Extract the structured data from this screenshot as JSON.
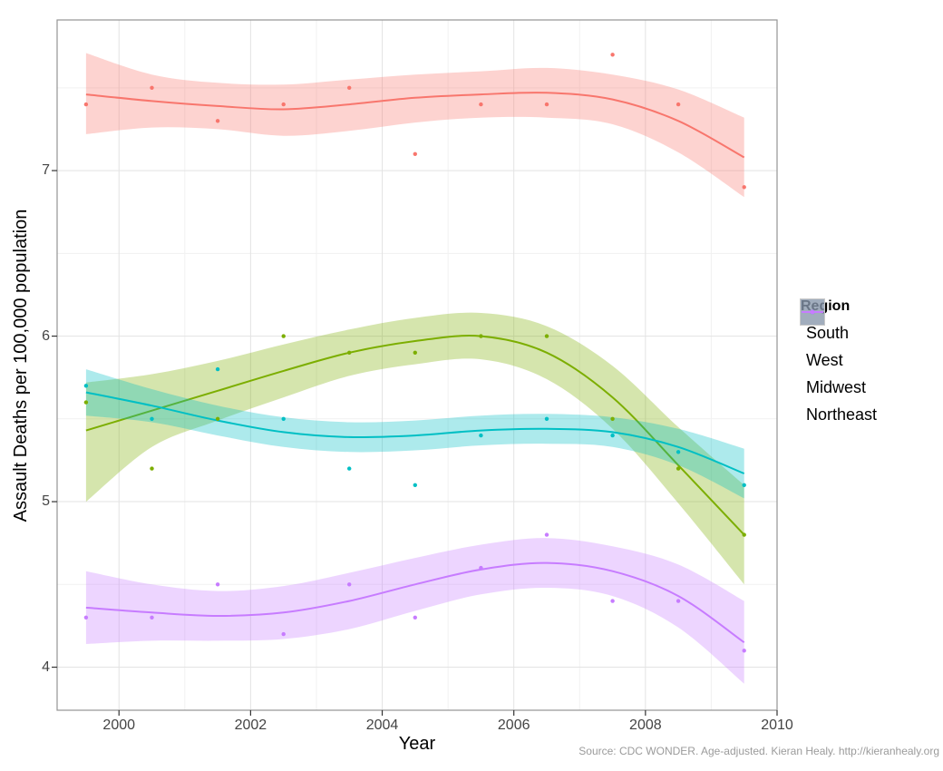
{
  "chart_data": {
    "type": "scatter",
    "subtype": "points with loess smooth lines and 95% confidence ribbons",
    "title": "",
    "xlabel": "Year",
    "ylabel": "Assault Deaths per 100,000 population",
    "caption": "Source: CDC WONDER. Age-adjusted. Kieran Healy. http://kieranhealy.org",
    "grid": true,
    "legend_position": "right",
    "legend_title": "Region",
    "x_range": [
      1999.06,
      2010.0
    ],
    "y_range": [
      3.74,
      7.91
    ],
    "x_major_ticks": [
      2000,
      2002,
      2004,
      2006,
      2008,
      2010
    ],
    "x_minor_ticks": [
      1999,
      2001,
      2003,
      2005,
      2007,
      2009
    ],
    "x_tick_labels": [
      "2000",
      "2002",
      "2004",
      "2006",
      "2008",
      "2010"
    ],
    "y_major_ticks": [
      4,
      5,
      6,
      7
    ],
    "y_minor_ticks": [
      4.5,
      5.5,
      6.5,
      7.5
    ],
    "y_tick_labels": [
      "4",
      "5",
      "6",
      "7"
    ],
    "x": [
      1999.5,
      2000.5,
      2001.5,
      2002.5,
      2003.5,
      2004.5,
      2005.5,
      2006.5,
      2007.5,
      2008.5,
      2009.5
    ],
    "series": [
      {
        "name": "South",
        "color": "#F8766D",
        "points": [
          7.4,
          7.5,
          7.3,
          7.4,
          7.5,
          7.1,
          7.4,
          7.4,
          7.7,
          7.4,
          6.9
        ],
        "line": [
          7.46,
          7.42,
          7.39,
          7.37,
          7.4,
          7.44,
          7.46,
          7.47,
          7.43,
          7.3,
          7.08
        ],
        "upper": [
          7.71,
          7.58,
          7.53,
          7.52,
          7.55,
          7.58,
          7.6,
          7.62,
          7.58,
          7.49,
          7.32
        ],
        "lower": [
          7.22,
          7.26,
          7.25,
          7.21,
          7.24,
          7.29,
          7.32,
          7.32,
          7.28,
          7.11,
          6.84
        ]
      },
      {
        "name": "West",
        "color": "#7CAE00",
        "points": [
          5.6,
          5.2,
          5.5,
          6.0,
          5.9,
          5.9,
          6.0,
          6.0,
          5.5,
          5.2,
          4.8
        ],
        "line": [
          5.43,
          5.55,
          5.67,
          5.79,
          5.9,
          5.97,
          6.0,
          5.9,
          5.63,
          5.22,
          4.8
        ],
        "upper": [
          5.72,
          5.77,
          5.85,
          5.95,
          6.04,
          6.11,
          6.14,
          6.06,
          5.82,
          5.45,
          5.1
        ],
        "lower": [
          5.0,
          5.33,
          5.49,
          5.63,
          5.76,
          5.83,
          5.86,
          5.74,
          5.44,
          4.99,
          4.5
        ]
      },
      {
        "name": "Midwest",
        "color": "#00BFC4",
        "points": [
          5.7,
          5.5,
          5.8,
          5.5,
          5.2,
          5.1,
          5.4,
          5.5,
          5.4,
          5.3,
          5.1
        ],
        "line": [
          5.66,
          5.58,
          5.49,
          5.42,
          5.39,
          5.4,
          5.43,
          5.44,
          5.42,
          5.33,
          5.17
        ],
        "upper": [
          5.8,
          5.68,
          5.58,
          5.51,
          5.48,
          5.49,
          5.52,
          5.53,
          5.51,
          5.44,
          5.32
        ],
        "lower": [
          5.52,
          5.48,
          5.4,
          5.33,
          5.3,
          5.31,
          5.34,
          5.35,
          5.33,
          5.22,
          5.02
        ]
      },
      {
        "name": "Northeast",
        "color": "#C77CFF",
        "points": [
          4.3,
          4.3,
          4.5,
          4.2,
          4.5,
          4.3,
          4.6,
          4.8,
          4.4,
          4.4,
          4.1
        ],
        "line": [
          4.36,
          4.33,
          4.31,
          4.33,
          4.4,
          4.5,
          4.59,
          4.63,
          4.58,
          4.43,
          4.15
        ],
        "upper": [
          4.58,
          4.5,
          4.46,
          4.49,
          4.57,
          4.66,
          4.74,
          4.78,
          4.73,
          4.62,
          4.4
        ],
        "lower": [
          4.14,
          4.16,
          4.16,
          4.17,
          4.23,
          4.34,
          4.44,
          4.48,
          4.43,
          4.24,
          3.9
        ]
      }
    ],
    "style": {
      "ribbon_opacity": 0.32,
      "major_grid_color": "#e3e3e3",
      "minor_grid_color": "#f1f1f1",
      "panel_border_color": "#949494",
      "tick_mark_color": "#333333"
    }
  }
}
